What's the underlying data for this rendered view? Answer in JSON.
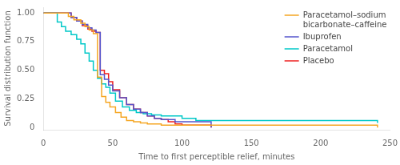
{
  "chart_data": {
    "type": "step",
    "xlabel": "Time to first perceptible relief, minutes",
    "ylabel": "Survival distribution function",
    "xlim": [
      0,
      250
    ],
    "ylim": [
      -0.02,
      1.05
    ],
    "xticks": [
      0,
      50,
      100,
      150,
      200,
      250
    ],
    "yticks": [
      0,
      0.25,
      {
        "value": 0.5,
        "label": "0.50"
      },
      0.75,
      {
        "value": 1.0,
        "label": "1.00"
      }
    ],
    "grid": false,
    "legend": "upper right",
    "series": [
      {
        "name": "Paracetamol–sodium\nbicarbonate–caffeine",
        "color": "#F5A623",
        "x": [
          0,
          14,
          18,
          22,
          27,
          30,
          33,
          36,
          39,
          42,
          45,
          48,
          52,
          56,
          60,
          65,
          70,
          75,
          80,
          85,
          90,
          240,
          241
        ],
        "values": [
          1.0,
          1.0,
          0.97,
          0.94,
          0.91,
          0.88,
          0.85,
          0.82,
          0.44,
          0.27,
          0.22,
          0.18,
          0.13,
          0.09,
          0.06,
          0.05,
          0.04,
          0.03,
          0.03,
          0.02,
          0.02,
          0.02,
          0.0
        ]
      },
      {
        "name": "Ibuprofen",
        "color": "#5555CC",
        "x": [
          0,
          16,
          20,
          24,
          28,
          32,
          35,
          38,
          41,
          44,
          47,
          50,
          55,
          60,
          65,
          70,
          75,
          80,
          85,
          90,
          95,
          120,
          121
        ],
        "values": [
          1.0,
          1.0,
          0.96,
          0.93,
          0.9,
          0.87,
          0.85,
          0.83,
          0.46,
          0.42,
          0.37,
          0.32,
          0.26,
          0.2,
          0.16,
          0.13,
          0.1,
          0.08,
          0.07,
          0.07,
          0.05,
          0.05,
          0.0
        ]
      },
      {
        "name": "Paracetamol",
        "color": "#00C8C8",
        "x": [
          0,
          10,
          13,
          16,
          20,
          24,
          27,
          30,
          33,
          36,
          39,
          42,
          45,
          48,
          52,
          57,
          62,
          67,
          72,
          78,
          85,
          92,
          100,
          110,
          240,
          241
        ],
        "values": [
          1.0,
          0.92,
          0.88,
          0.84,
          0.81,
          0.77,
          0.73,
          0.65,
          0.58,
          0.5,
          0.43,
          0.38,
          0.35,
          0.3,
          0.23,
          0.18,
          0.15,
          0.13,
          0.12,
          0.11,
          0.1,
          0.1,
          0.08,
          0.06,
          0.06,
          0.04
        ]
      },
      {
        "name": "Placebo",
        "color": "#EE2020",
        "x": [
          0,
          16,
          20,
          24,
          28,
          32,
          35,
          38,
          41,
          44,
          47,
          50,
          55,
          60,
          65,
          70,
          75,
          80,
          85,
          90,
          95,
          100,
          120,
          121
        ],
        "values": [
          1.0,
          1.0,
          0.96,
          0.93,
          0.89,
          0.86,
          0.84,
          0.83,
          0.5,
          0.47,
          0.4,
          0.33,
          0.26,
          0.2,
          0.16,
          0.13,
          0.1,
          0.08,
          0.07,
          0.05,
          0.03,
          0.02,
          0.02,
          0.0
        ]
      }
    ]
  }
}
